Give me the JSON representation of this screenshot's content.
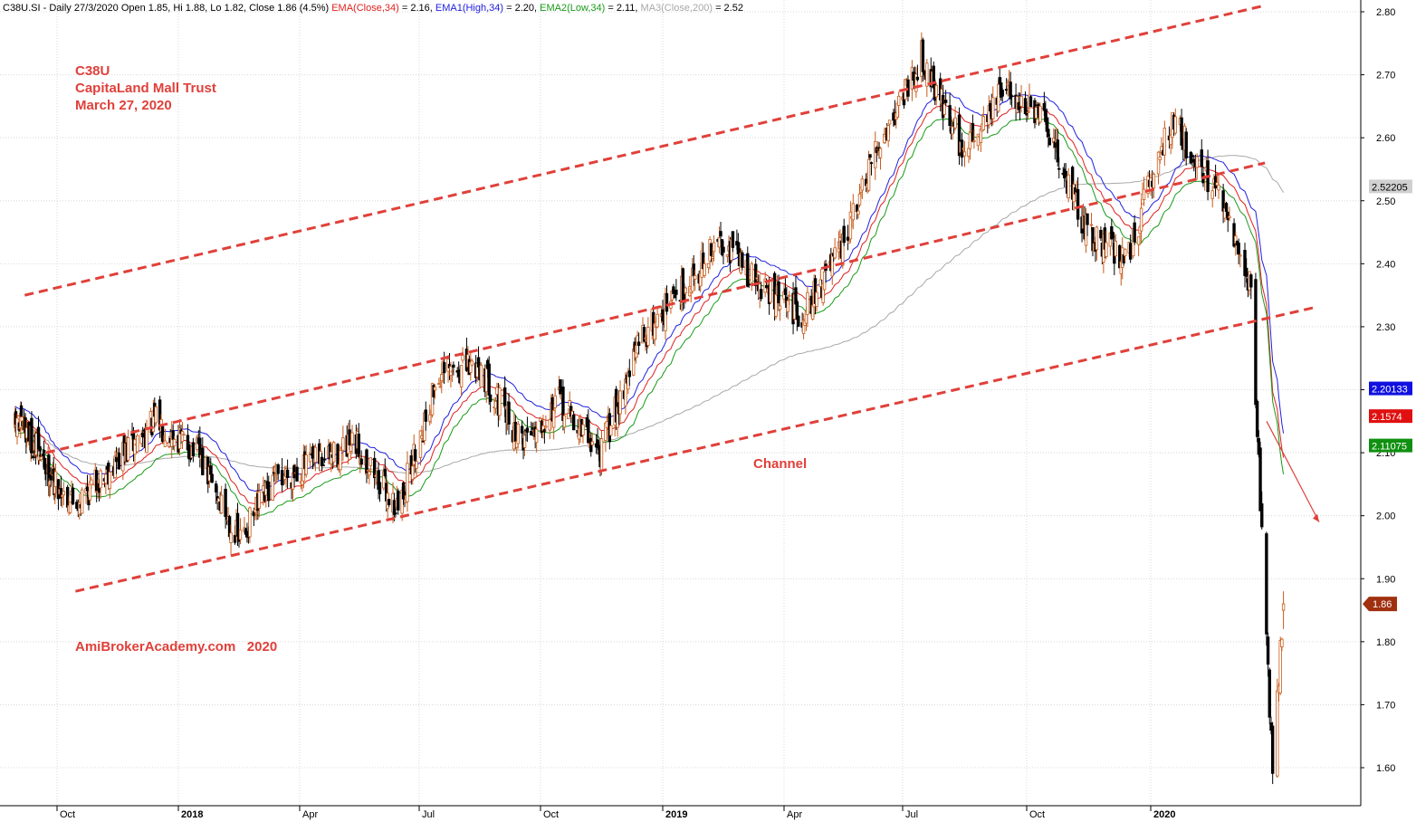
{
  "header": {
    "parts": [
      {
        "text": "C38U.SI - Daily 27/3/2020 Open 1.85, Hi 1.88, Lo 1.82, Close 1.86 (4.5%) ",
        "color": "#000000"
      },
      {
        "text": "EMA(Close,34)",
        "color": "#e02020"
      },
      {
        "text": " = 2.16, ",
        "color": "#000000"
      },
      {
        "text": "EMA1(High,34)",
        "color": "#2020e0"
      },
      {
        "text": " = 2.20, ",
        "color": "#000000"
      },
      {
        "text": "EMA2(Low,34)",
        "color": "#1a9a1a"
      },
      {
        "text": " = 2.11, ",
        "color": "#000000"
      },
      {
        "text": "MA3(Close,200)",
        "color": "#a8a8a8"
      },
      {
        "text": " = 2.52",
        "color": "#000000"
      }
    ]
  },
  "annotations": {
    "ticker": "C38U",
    "name": "CapitaLand Mall Trust",
    "date": "March 27, 2020",
    "channel": "Channel",
    "watermark": "AmiBrokerAcademy.com   2020"
  },
  "tags": [
    {
      "label": "2.52205",
      "value": 2.52205,
      "bg": "#d0d0d0",
      "fg": "#000000"
    },
    {
      "label": "2.20133",
      "value": 2.20133,
      "bg": "#1010e0",
      "fg": "#ffffff"
    },
    {
      "label": "2.1574",
      "value": 2.1574,
      "bg": "#e01010",
      "fg": "#ffffff"
    },
    {
      "label": "2.11075",
      "value": 2.11075,
      "bg": "#109010",
      "fg": "#ffffff"
    },
    {
      "label": "1.86",
      "value": 1.86,
      "bg": "#a03010",
      "fg": "#ffffff"
    }
  ],
  "colors": {
    "up_candle": "#c85a1a",
    "down_candle": "#000000",
    "ema_close": "#e02020",
    "ema_high": "#2020e0",
    "ema_low": "#1a9a1a",
    "ma200": "#a8a8a8",
    "trendline": "#e0403a",
    "grid": "#d8d8d8"
  },
  "chart_data": {
    "type": "candlestick",
    "title": "C38U.SI - Daily",
    "x_ticks": [
      "Oct",
      "2018",
      "Apr",
      "Jul",
      "Oct",
      "2019",
      "Apr",
      "Jul",
      "Oct",
      "2020"
    ],
    "y_ticks": [
      1.6,
      1.7,
      1.8,
      1.9,
      2.0,
      2.1,
      2.2,
      2.3,
      2.4,
      2.5,
      2.6,
      2.7,
      2.8
    ],
    "y_tick_labels": [
      "1.60",
      "1.70",
      "1.80",
      "1.90",
      "2.00",
      "2.10",
      "2.20",
      "2.30",
      "2.40",
      "2.50",
      "2.60",
      "2.70",
      "2.80"
    ],
    "ylim": [
      1.54,
      2.82
    ],
    "price_path": [
      {
        "date": "2017-08",
        "close": 2.14
      },
      {
        "date": "2017-10",
        "close": 2.02
      },
      {
        "date": "2017-12",
        "close": 2.15
      },
      {
        "date": "2018-01",
        "close": 2.1
      },
      {
        "date": "2018-02",
        "close": 1.96
      },
      {
        "date": "2018-03",
        "close": 2.06
      },
      {
        "date": "2018-05",
        "close": 2.11
      },
      {
        "date": "2018-06",
        "close": 2.01
      },
      {
        "date": "2018-07",
        "close": 2.22
      },
      {
        "date": "2018-08",
        "close": 2.24
      },
      {
        "date": "2018-09",
        "close": 2.12
      },
      {
        "date": "2018-10",
        "close": 2.18
      },
      {
        "date": "2018-11",
        "close": 2.1
      },
      {
        "date": "2018-12",
        "close": 2.28
      },
      {
        "date": "2019-01",
        "close": 2.36
      },
      {
        "date": "2019-02",
        "close": 2.44
      },
      {
        "date": "2019-03",
        "close": 2.36
      },
      {
        "date": "2019-04",
        "close": 2.32
      },
      {
        "date": "2019-05",
        "close": 2.42
      },
      {
        "date": "2019-06",
        "close": 2.6
      },
      {
        "date": "2019-07",
        "close": 2.73
      },
      {
        "date": "2019-08",
        "close": 2.58
      },
      {
        "date": "2019-09",
        "close": 2.68
      },
      {
        "date": "2019-10",
        "close": 2.62
      },
      {
        "date": "2019-11",
        "close": 2.45
      },
      {
        "date": "2019-12",
        "close": 2.41
      },
      {
        "date": "2020-01",
        "close": 2.63
      },
      {
        "date": "2020-02",
        "close": 2.5
      },
      {
        "date": "2020-03-06",
        "close": 2.36
      },
      {
        "date": "2020-03-20",
        "close": 1.59
      },
      {
        "date": "2020-03-27",
        "close": 1.86
      }
    ],
    "series": [
      {
        "name": "EMA(Close,34)",
        "last": 2.16
      },
      {
        "name": "EMA1(High,34)",
        "last": 2.2
      },
      {
        "name": "EMA2(Low,34)",
        "last": 2.11
      },
      {
        "name": "MA3(Close,200)",
        "last": 2.52
      }
    ],
    "trendlines": [
      {
        "style": "dashed",
        "from": {
          "date": "2017-08",
          "price": 2.35
        },
        "to": {
          "date": "2020-03",
          "price": 2.81
        }
      },
      {
        "style": "dashed",
        "from": {
          "date": "2017-09",
          "price": 2.1
        },
        "to": {
          "date": "2020-03",
          "price": 2.56
        }
      },
      {
        "style": "dashed",
        "from": {
          "date": "2017-10",
          "price": 1.88
        },
        "to": {
          "date": "2020-04",
          "price": 2.33
        }
      }
    ],
    "grid": true,
    "legend": "top"
  }
}
